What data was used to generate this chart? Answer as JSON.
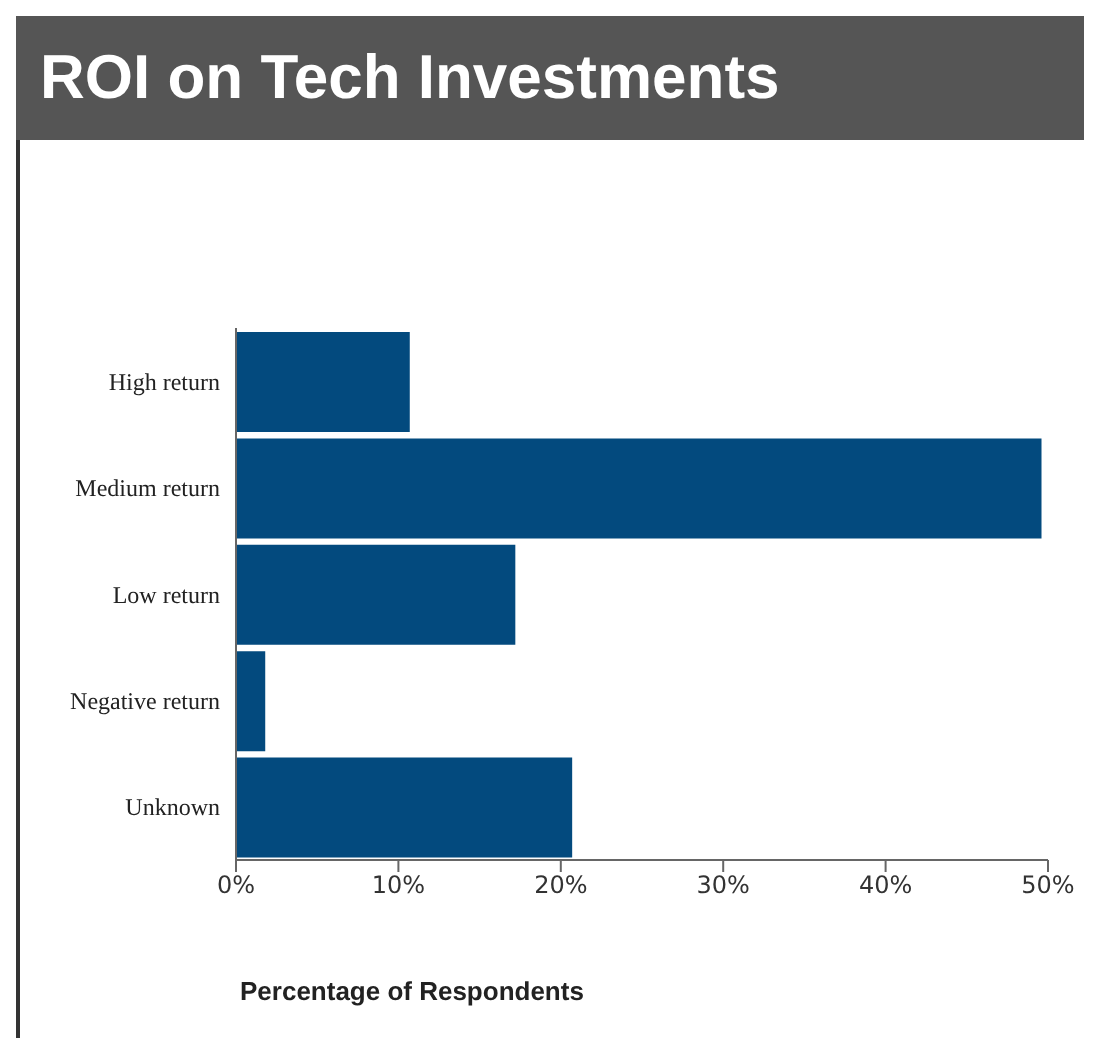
{
  "chart_data": {
    "type": "bar",
    "orientation": "horizontal",
    "title": "ROI on Tech Investments",
    "xlabel": "Percentage of Respondents",
    "categories": [
      "High return",
      "Medium return",
      "Low return",
      "Negative return",
      "Unknown"
    ],
    "values": [
      10.7,
      49.6,
      17.2,
      1.8,
      20.7
    ],
    "color": "#034a7e",
    "xlim": [
      0,
      50
    ],
    "xticks": [
      {
        "value": 0,
        "label": "0%"
      },
      {
        "value": 10,
        "label": "10%"
      },
      {
        "value": 20,
        "label": "20%"
      },
      {
        "value": 30,
        "label": "30%"
      },
      {
        "value": 40,
        "label": "40%"
      },
      {
        "value": 50,
        "label": "50%"
      }
    ],
    "grid": false,
    "legend": false
  }
}
